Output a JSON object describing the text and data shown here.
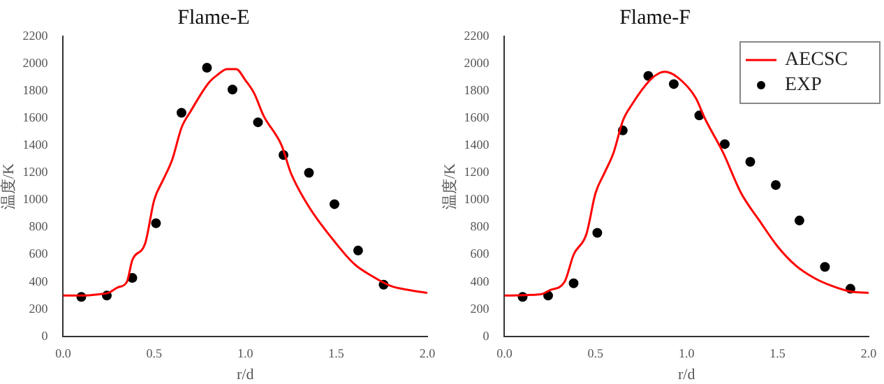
{
  "chart_data": [
    {
      "type": "line",
      "title": "Flame-E",
      "xlabel": "r/d",
      "ylabel": "温度/K",
      "xlim": [
        0,
        2
      ],
      "xticks": [
        {
          "value": 0,
          "label": "0.0"
        },
        {
          "value": 0.5,
          "label": "0.5"
        },
        {
          "value": 1,
          "label": "1.0"
        },
        {
          "value": 1.5,
          "label": "1.5"
        },
        {
          "value": 2,
          "label": "2.0"
        }
      ],
      "ylim": [
        0,
        2200
      ],
      "yticks": [
        0,
        200,
        400,
        600,
        800,
        1000,
        1200,
        1400,
        1600,
        1800,
        2000,
        2200
      ],
      "grid": false,
      "legend": false,
      "series": [
        {
          "color": "#ff0000",
          "marker": "none",
          "x": [
            0,
            0.1,
            0.2,
            0.25,
            0.3,
            0.35,
            0.38,
            0.45,
            0.5,
            0.55,
            0.6,
            0.65,
            0.7,
            0.8,
            0.85,
            0.9,
            0.95,
            1.0,
            1.05,
            1.1,
            1.2,
            1.25,
            1.35,
            1.5,
            1.6,
            1.7,
            1.8,
            1.9,
            2.0
          ],
          "values": [
            300,
            300,
            310,
            320,
            360,
            400,
            560,
            680,
            1000,
            1150,
            1300,
            1530,
            1650,
            1860,
            1920,
            1960,
            1960,
            1880,
            1780,
            1620,
            1400,
            1200,
            950,
            680,
            530,
            440,
            370,
            340,
            320
          ]
        },
        {
          "type": "scatter",
          "color": "#000000",
          "marker": "circle",
          "x": [
            0.1,
            0.24,
            0.38,
            0.51,
            0.65,
            0.79,
            0.93,
            1.07,
            1.21,
            1.35,
            1.49,
            1.62,
            1.76
          ],
          "values": [
            290,
            300,
            430,
            830,
            1640,
            1970,
            1810,
            1570,
            1330,
            1200,
            970,
            630,
            380
          ]
        }
      ]
    },
    {
      "type": "line",
      "title": "Flame-F",
      "xlabel": "r/d",
      "ylabel": "温度/K",
      "xlim": [
        0,
        2
      ],
      "xticks": [
        {
          "value": 0,
          "label": "0.0"
        },
        {
          "value": 0.5,
          "label": "0.5"
        },
        {
          "value": 1,
          "label": "1.0"
        },
        {
          "value": 1.5,
          "label": "1.5"
        },
        {
          "value": 2,
          "label": "2.0"
        }
      ],
      "ylim": [
        0,
        2200
      ],
      "yticks": [
        0,
        200,
        400,
        600,
        800,
        1000,
        1200,
        1400,
        1600,
        1800,
        2000,
        2200
      ],
      "grid": false,
      "legend": "top right",
      "series": [
        {
          "name": "AECSC",
          "color": "#ff0000",
          "marker": "none",
          "x": [
            0,
            0.2,
            0.25,
            0.33,
            0.38,
            0.45,
            0.5,
            0.55,
            0.6,
            0.65,
            0.7,
            0.8,
            0.85,
            0.88,
            0.95,
            1.05,
            1.1,
            1.2,
            1.3,
            1.4,
            1.5,
            1.6,
            1.7,
            1.8,
            1.9,
            2.0
          ],
          "values": [
            300,
            310,
            340,
            400,
            600,
            750,
            1050,
            1200,
            1350,
            1580,
            1700,
            1880,
            1930,
            1940,
            1900,
            1750,
            1600,
            1350,
            1050,
            850,
            660,
            520,
            430,
            370,
            330,
            320
          ]
        },
        {
          "name": "EXP",
          "type": "scatter",
          "color": "#000000",
          "marker": "circle",
          "x": [
            0.1,
            0.24,
            0.38,
            0.51,
            0.65,
            0.79,
            0.93,
            1.07,
            1.21,
            1.35,
            1.49,
            1.62,
            1.76,
            1.9
          ],
          "values": [
            290,
            300,
            390,
            760,
            1510,
            1910,
            1850,
            1620,
            1410,
            1280,
            1110,
            850,
            510,
            350
          ]
        }
      ]
    }
  ]
}
